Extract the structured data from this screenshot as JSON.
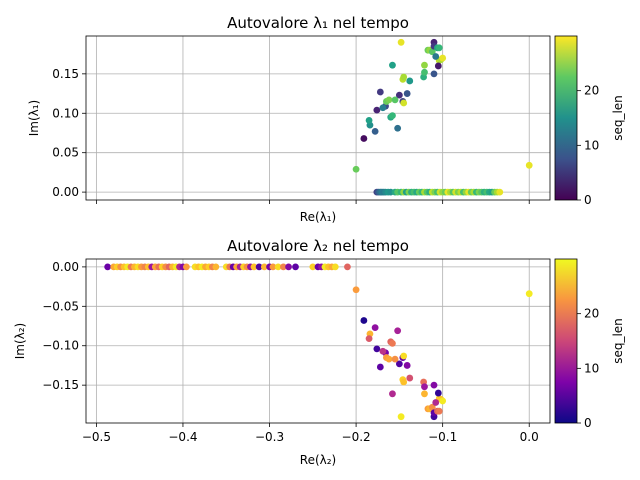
{
  "chart_data": [
    {
      "type": "scatter",
      "title": "Autovalore λ₁ nel tempo",
      "xlabel": "Re(λ₁)",
      "ylabel": "Im(λ₁)",
      "xlim": [
        -0.512,
        0.024
      ],
      "ylim": [
        -0.01,
        0.198
      ],
      "xticks": [
        -0.5,
        -0.4,
        -0.3,
        -0.2,
        -0.1,
        0.0
      ],
      "show_xtick_labels": false,
      "yticks": [
        0.0,
        0.05,
        0.1,
        0.15
      ],
      "ytick_labels": [
        "0.00",
        "0.05",
        "0.10",
        "0.15"
      ],
      "grid": true,
      "colormap": "viridis",
      "colorbar": {
        "label": "seq_len",
        "min": 0,
        "max": 30,
        "ticks": [
          0,
          10,
          20
        ],
        "tick_labels": [
          "0",
          "10",
          "20"
        ]
      },
      "points": [
        {
          "x": -0.191,
          "y": 0.068,
          "c": 1
        },
        {
          "x": -0.176,
          "y": 0.104,
          "c": 3
        },
        {
          "x": -0.172,
          "y": 0.127,
          "c": 5
        },
        {
          "x": -0.166,
          "y": 0.109,
          "c": 7
        },
        {
          "x": -0.15,
          "y": 0.123,
          "c": 4
        },
        {
          "x": -0.146,
          "y": 0.115,
          "c": 6
        },
        {
          "x": -0.141,
          "y": 0.125,
          "c": 8
        },
        {
          "x": -0.152,
          "y": 0.081,
          "c": 11
        },
        {
          "x": -0.178,
          "y": 0.077,
          "c": 9
        },
        {
          "x": -0.169,
          "y": 0.107,
          "c": 13
        },
        {
          "x": -0.184,
          "y": 0.085,
          "c": 15
        },
        {
          "x": -0.185,
          "y": 0.091,
          "c": 17
        },
        {
          "x": -0.158,
          "y": 0.161,
          "c": 17
        },
        {
          "x": -0.16,
          "y": 0.095,
          "c": 18
        },
        {
          "x": -0.158,
          "y": 0.097,
          "c": 20
        },
        {
          "x": -0.165,
          "y": 0.115,
          "c": 23
        },
        {
          "x": -0.162,
          "y": 0.117,
          "c": 24
        },
        {
          "x": -0.155,
          "y": 0.117,
          "c": 22
        },
        {
          "x": -0.146,
          "y": 0.143,
          "c": 27
        },
        {
          "x": -0.145,
          "y": 0.146,
          "c": 26
        },
        {
          "x": -0.145,
          "y": 0.113,
          "c": 28
        },
        {
          "x": -0.148,
          "y": 0.19,
          "c": 29
        },
        {
          "x": -0.138,
          "y": 0.141,
          "c": 16
        },
        {
          "x": -0.122,
          "y": 0.146,
          "c": 19
        },
        {
          "x": -0.121,
          "y": 0.152,
          "c": 21
        },
        {
          "x": -0.121,
          "y": 0.161,
          "c": 25
        },
        {
          "x": -0.117,
          "y": 0.18,
          "c": 23
        },
        {
          "x": -0.115,
          "y": 0.18,
          "c": 25
        },
        {
          "x": -0.112,
          "y": 0.178,
          "c": 22
        },
        {
          "x": -0.11,
          "y": 0.19,
          "c": 3
        },
        {
          "x": -0.11,
          "y": 0.185,
          "c": 5
        },
        {
          "x": -0.11,
          "y": 0.15,
          "c": 8
        },
        {
          "x": -0.106,
          "y": 0.183,
          "c": 18
        },
        {
          "x": -0.104,
          "y": 0.183,
          "c": 20
        },
        {
          "x": -0.104,
          "y": 0.167,
          "c": 27
        },
        {
          "x": -0.102,
          "y": 0.168,
          "c": 26
        },
        {
          "x": -0.105,
          "y": 0.16,
          "c": 2
        },
        {
          "x": -0.1,
          "y": 0.17,
          "c": 29
        },
        {
          "x": -0.108,
          "y": 0.172,
          "c": 12
        },
        {
          "x": -0.2,
          "y": 0.029,
          "c": 23
        },
        {
          "x": 0.0,
          "y": 0.034,
          "c": 29
        },
        {
          "x": -0.176,
          "y": 0.0,
          "c": 6
        },
        {
          "x": -0.174,
          "y": 0.0,
          "c": 9
        },
        {
          "x": -0.172,
          "y": 0.0,
          "c": 11
        },
        {
          "x": -0.17,
          "y": 0.0,
          "c": 13
        },
        {
          "x": -0.168,
          "y": 0.0,
          "c": 12
        },
        {
          "x": -0.166,
          "y": 0.0,
          "c": 14
        },
        {
          "x": -0.163,
          "y": 0.0,
          "c": 16
        },
        {
          "x": -0.16,
          "y": 0.0,
          "c": 15
        },
        {
          "x": -0.155,
          "y": 0.0,
          "c": 18
        },
        {
          "x": -0.152,
          "y": 0.0,
          "c": 22
        },
        {
          "x": -0.148,
          "y": 0.0,
          "c": 20
        },
        {
          "x": -0.145,
          "y": 0.0,
          "c": 25
        },
        {
          "x": -0.142,
          "y": 0.0,
          "c": 17
        },
        {
          "x": -0.139,
          "y": 0.0,
          "c": 24
        },
        {
          "x": -0.136,
          "y": 0.0,
          "c": 19
        },
        {
          "x": -0.133,
          "y": 0.0,
          "c": 21
        },
        {
          "x": -0.13,
          "y": 0.0,
          "c": 18
        },
        {
          "x": -0.127,
          "y": 0.0,
          "c": 23
        },
        {
          "x": -0.124,
          "y": 0.0,
          "c": 20
        },
        {
          "x": -0.121,
          "y": 0.0,
          "c": 26
        },
        {
          "x": -0.118,
          "y": 0.0,
          "c": 22
        },
        {
          "x": -0.115,
          "y": 0.0,
          "c": 19
        },
        {
          "x": -0.112,
          "y": 0.0,
          "c": 27
        },
        {
          "x": -0.109,
          "y": 0.0,
          "c": 24
        },
        {
          "x": -0.106,
          "y": 0.0,
          "c": 21
        },
        {
          "x": -0.103,
          "y": 0.0,
          "c": 28
        },
        {
          "x": -0.1,
          "y": 0.0,
          "c": 25
        },
        {
          "x": -0.097,
          "y": 0.0,
          "c": 23
        },
        {
          "x": -0.094,
          "y": 0.0,
          "c": 29
        },
        {
          "x": -0.091,
          "y": 0.0,
          "c": 26
        },
        {
          "x": -0.088,
          "y": 0.0,
          "c": 22
        },
        {
          "x": -0.085,
          "y": 0.0,
          "c": 28
        },
        {
          "x": -0.082,
          "y": 0.0,
          "c": 24
        },
        {
          "x": -0.079,
          "y": 0.0,
          "c": 27
        },
        {
          "x": -0.076,
          "y": 0.0,
          "c": 21
        },
        {
          "x": -0.073,
          "y": 0.0,
          "c": 25
        },
        {
          "x": -0.07,
          "y": 0.0,
          "c": 29
        },
        {
          "x": -0.067,
          "y": 0.0,
          "c": 23
        },
        {
          "x": -0.064,
          "y": 0.0,
          "c": 26
        },
        {
          "x": -0.061,
          "y": 0.0,
          "c": 20
        },
        {
          "x": -0.058,
          "y": 0.0,
          "c": 24
        },
        {
          "x": -0.055,
          "y": 0.0,
          "c": 22
        },
        {
          "x": -0.052,
          "y": 0.0,
          "c": 19
        },
        {
          "x": -0.049,
          "y": 0.0,
          "c": 21
        },
        {
          "x": -0.046,
          "y": 0.0,
          "c": 18
        },
        {
          "x": -0.043,
          "y": 0.0,
          "c": 17
        },
        {
          "x": -0.04,
          "y": 0.0,
          "c": 23
        },
        {
          "x": -0.037,
          "y": 0.0,
          "c": 26
        },
        {
          "x": -0.034,
          "y": 0.0,
          "c": 29
        }
      ]
    },
    {
      "type": "scatter",
      "title": "Autovalore λ₂ nel tempo",
      "xlabel": "Re(λ₂)",
      "ylabel": "Im(λ₂)",
      "xlim": [
        -0.512,
        0.024
      ],
      "ylim": [
        -0.198,
        0.01
      ],
      "xticks": [
        -0.5,
        -0.4,
        -0.3,
        -0.2,
        -0.1,
        0.0
      ],
      "xtick_labels": [
        "−0.5",
        "−0.4",
        "−0.3",
        "−0.2",
        "−0.1",
        "0.0"
      ],
      "show_xtick_labels": true,
      "yticks": [
        0.0,
        -0.05,
        -0.1,
        -0.15
      ],
      "ytick_labels": [
        "0.00",
        "−0.05",
        "−0.10",
        "−0.15"
      ],
      "grid": true,
      "colormap": "plasma",
      "colorbar": {
        "label": "seq_len",
        "min": 0,
        "max": 30,
        "ticks": [
          0,
          10,
          20
        ],
        "tick_labels": [
          "0",
          "10",
          "20"
        ]
      },
      "points": [
        {
          "x": -0.191,
          "y": -0.068,
          "c": 1
        },
        {
          "x": -0.176,
          "y": -0.104,
          "c": 3
        },
        {
          "x": -0.172,
          "y": -0.127,
          "c": 5
        },
        {
          "x": -0.166,
          "y": -0.109,
          "c": 7
        },
        {
          "x": -0.15,
          "y": -0.123,
          "c": 4
        },
        {
          "x": -0.146,
          "y": -0.115,
          "c": 6
        },
        {
          "x": -0.141,
          "y": -0.125,
          "c": 8
        },
        {
          "x": -0.152,
          "y": -0.081,
          "c": 11
        },
        {
          "x": -0.178,
          "y": -0.077,
          "c": 9
        },
        {
          "x": -0.169,
          "y": -0.107,
          "c": 13
        },
        {
          "x": -0.184,
          "y": -0.085,
          "c": 25
        },
        {
          "x": -0.185,
          "y": -0.091,
          "c": 17
        },
        {
          "x": -0.158,
          "y": -0.161,
          "c": 12
        },
        {
          "x": -0.16,
          "y": -0.095,
          "c": 18
        },
        {
          "x": -0.158,
          "y": -0.097,
          "c": 20
        },
        {
          "x": -0.165,
          "y": -0.115,
          "c": 23
        },
        {
          "x": -0.162,
          "y": -0.117,
          "c": 24
        },
        {
          "x": -0.155,
          "y": -0.117,
          "c": 22
        },
        {
          "x": -0.146,
          "y": -0.143,
          "c": 27
        },
        {
          "x": -0.145,
          "y": -0.146,
          "c": 26
        },
        {
          "x": -0.145,
          "y": -0.113,
          "c": 28
        },
        {
          "x": -0.148,
          "y": -0.19,
          "c": 29
        },
        {
          "x": -0.138,
          "y": -0.141,
          "c": 16
        },
        {
          "x": -0.122,
          "y": -0.146,
          "c": 19
        },
        {
          "x": -0.121,
          "y": -0.152,
          "c": 10
        },
        {
          "x": -0.121,
          "y": -0.161,
          "c": 25
        },
        {
          "x": -0.117,
          "y": -0.18,
          "c": 23
        },
        {
          "x": -0.115,
          "y": -0.18,
          "c": 25
        },
        {
          "x": -0.112,
          "y": -0.178,
          "c": 22
        },
        {
          "x": -0.11,
          "y": -0.19,
          "c": 3
        },
        {
          "x": -0.11,
          "y": -0.185,
          "c": 5
        },
        {
          "x": -0.11,
          "y": -0.15,
          "c": 8
        },
        {
          "x": -0.106,
          "y": -0.183,
          "c": 18
        },
        {
          "x": -0.104,
          "y": -0.183,
          "c": 20
        },
        {
          "x": -0.104,
          "y": -0.167,
          "c": 27
        },
        {
          "x": -0.102,
          "y": -0.168,
          "c": 26
        },
        {
          "x": -0.105,
          "y": -0.16,
          "c": 2
        },
        {
          "x": -0.1,
          "y": -0.17,
          "c": 29
        },
        {
          "x": -0.108,
          "y": -0.172,
          "c": 12
        },
        {
          "x": -0.2,
          "y": -0.029,
          "c": 23
        },
        {
          "x": 0.0,
          "y": -0.034,
          "c": 29
        },
        {
          "x": -0.487,
          "y": 0.0,
          "c": 6
        },
        {
          "x": -0.48,
          "y": 0.0,
          "c": 24
        },
        {
          "x": -0.476,
          "y": 0.0,
          "c": 27
        },
        {
          "x": -0.472,
          "y": 0.0,
          "c": 22
        },
        {
          "x": -0.468,
          "y": 0.0,
          "c": 26
        },
        {
          "x": -0.464,
          "y": 0.0,
          "c": 29
        },
        {
          "x": -0.46,
          "y": 0.0,
          "c": 20
        },
        {
          "x": -0.456,
          "y": 0.0,
          "c": 25
        },
        {
          "x": -0.452,
          "y": 0.0,
          "c": 28
        },
        {
          "x": -0.448,
          "y": 0.0,
          "c": 23
        },
        {
          "x": -0.444,
          "y": 0.0,
          "c": 21
        },
        {
          "x": -0.44,
          "y": 0.0,
          "c": 26
        },
        {
          "x": -0.436,
          "y": 0.0,
          "c": 10
        },
        {
          "x": -0.432,
          "y": 0.0,
          "c": 24
        },
        {
          "x": -0.428,
          "y": 0.0,
          "c": 19
        },
        {
          "x": -0.424,
          "y": 0.0,
          "c": 27
        },
        {
          "x": -0.42,
          "y": 0.0,
          "c": 22
        },
        {
          "x": -0.416,
          "y": 0.0,
          "c": 18
        },
        {
          "x": -0.412,
          "y": 0.0,
          "c": 25
        },
        {
          "x": -0.408,
          "y": 0.0,
          "c": 29
        },
        {
          "x": -0.404,
          "y": 0.0,
          "c": 12
        },
        {
          "x": -0.4,
          "y": 0.0,
          "c": 8
        },
        {
          "x": -0.396,
          "y": 0.0,
          "c": 23
        },
        {
          "x": -0.386,
          "y": 0.0,
          "c": 28
        },
        {
          "x": -0.382,
          "y": 0.0,
          "c": 26
        },
        {
          "x": -0.378,
          "y": 0.0,
          "c": 29
        },
        {
          "x": -0.374,
          "y": 0.0,
          "c": 24
        },
        {
          "x": -0.37,
          "y": 0.0,
          "c": 27
        },
        {
          "x": -0.366,
          "y": 0.0,
          "c": 21
        },
        {
          "x": -0.362,
          "y": 0.0,
          "c": 25
        },
        {
          "x": -0.35,
          "y": 0.0,
          "c": 28
        },
        {
          "x": -0.346,
          "y": 0.0,
          "c": 20
        },
        {
          "x": -0.342,
          "y": 0.0,
          "c": 6
        },
        {
          "x": -0.338,
          "y": 0.0,
          "c": 24
        },
        {
          "x": -0.334,
          "y": 0.0,
          "c": 11
        },
        {
          "x": -0.33,
          "y": 0.0,
          "c": 27
        },
        {
          "x": -0.326,
          "y": 0.0,
          "c": 22
        },
        {
          "x": -0.322,
          "y": 0.0,
          "c": 9
        },
        {
          "x": -0.318,
          "y": 0.0,
          "c": 26
        },
        {
          "x": -0.312,
          "y": 0.0,
          "c": 4
        },
        {
          "x": -0.306,
          "y": 0.0,
          "c": 25
        },
        {
          "x": -0.3,
          "y": 0.0,
          "c": 7
        },
        {
          "x": -0.296,
          "y": 0.0,
          "c": 23
        },
        {
          "x": -0.29,
          "y": 0.0,
          "c": 28
        },
        {
          "x": -0.284,
          "y": 0.0,
          "c": 21
        },
        {
          "x": -0.278,
          "y": 0.0,
          "c": 8
        },
        {
          "x": -0.27,
          "y": 0.0,
          "c": 5
        },
        {
          "x": -0.25,
          "y": 0.0,
          "c": 27
        },
        {
          "x": -0.244,
          "y": 0.0,
          "c": 6
        },
        {
          "x": -0.24,
          "y": 0.0,
          "c": 9
        },
        {
          "x": -0.236,
          "y": 0.0,
          "c": 29
        },
        {
          "x": -0.232,
          "y": 0.0,
          "c": 26
        },
        {
          "x": -0.228,
          "y": 0.0,
          "c": 24
        },
        {
          "x": -0.224,
          "y": 0.0,
          "c": 28
        },
        {
          "x": -0.21,
          "y": 0.0,
          "c": 18
        }
      ]
    }
  ]
}
